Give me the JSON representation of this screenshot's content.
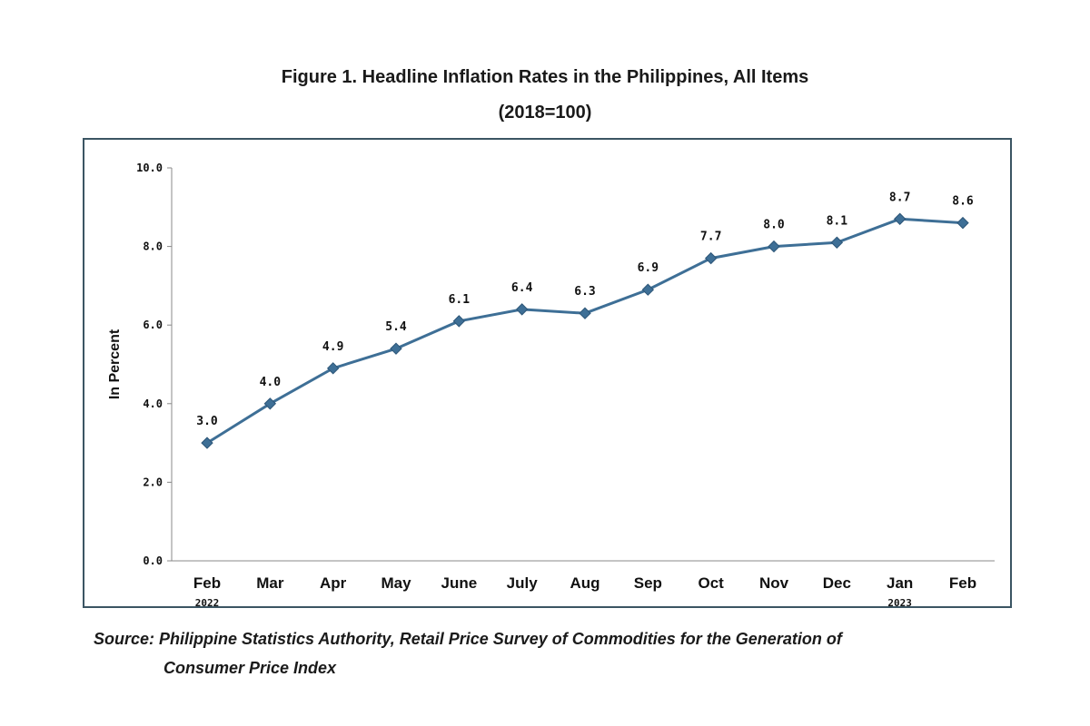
{
  "figure": {
    "title_line1": "Figure 1. Headline Inflation Rates in the Philippines, All Items",
    "title_line2": "(2018=100)"
  },
  "source": {
    "line1": "Source: Philippine Statistics Authority, Retail Price Survey of Commodities for the Generation of",
    "line2": "Consumer Price Index"
  },
  "chart_data": {
    "type": "line",
    "categories": [
      "Feb",
      "Mar",
      "Apr",
      "May",
      "June",
      "July",
      "Aug",
      "Sep",
      "Oct",
      "Nov",
      "Dec",
      "Jan",
      "Feb"
    ],
    "year_labels": [
      "2022",
      "",
      "",
      "",
      "",
      "",
      "",
      "",
      "",
      "",
      "",
      "2023",
      ""
    ],
    "values": [
      3.0,
      4.0,
      4.9,
      5.4,
      6.1,
      6.4,
      6.3,
      6.9,
      7.7,
      8.0,
      8.1,
      8.7,
      8.6
    ],
    "data_labels": [
      "3.0",
      "4.0",
      "4.9",
      "5.4",
      "6.1",
      "6.4",
      "6.3",
      "6.9",
      "7.7",
      "8.0",
      "8.1",
      "8.7",
      "8.6"
    ],
    "ylabel": "In Percent",
    "ylim": [
      0,
      10
    ],
    "yticks": [
      "0.0",
      "2.0",
      "4.0",
      "6.0",
      "8.0",
      "10.0"
    ],
    "ytick_values": [
      0,
      2,
      4,
      6,
      8,
      10
    ],
    "grid": false,
    "legend": "none",
    "line_color": "#3e6f96",
    "marker_color": "#3e6f96",
    "marker": "diamond"
  }
}
